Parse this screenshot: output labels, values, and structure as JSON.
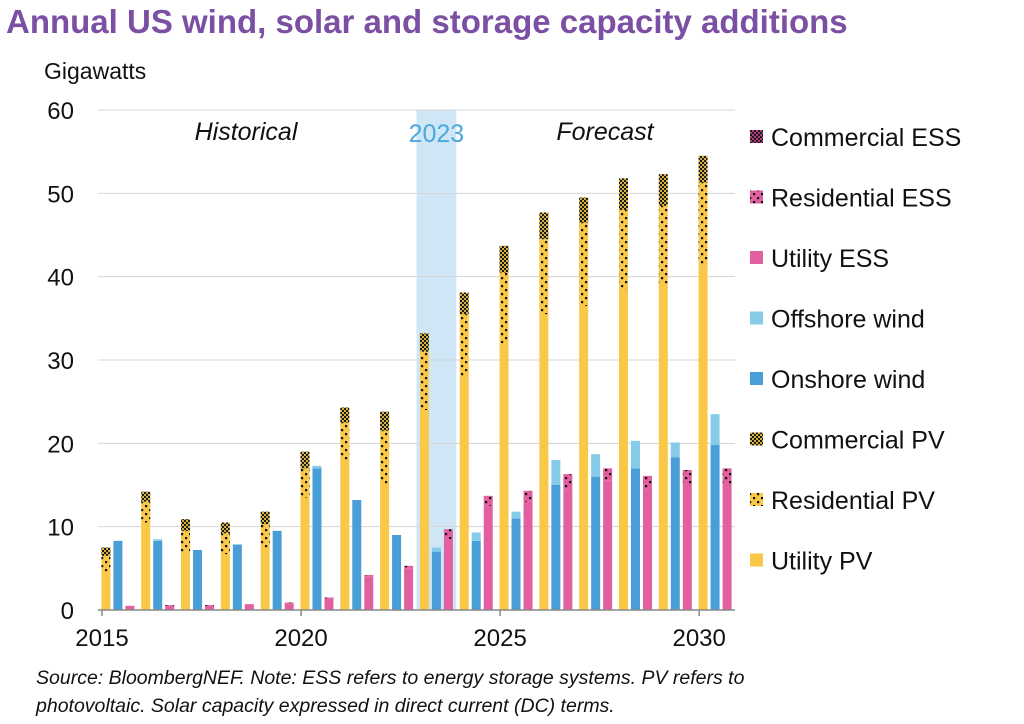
{
  "chart_data": {
    "type": "bar",
    "title": "Annual US wind, solar and storage capacity additions",
    "ylabel": "Gigawatts",
    "ylim": [
      0,
      60
    ],
    "yticks": [
      0,
      10,
      20,
      30,
      40,
      50,
      60
    ],
    "xticks": [
      "2015",
      "2020",
      "2025",
      "2030"
    ],
    "years": [
      2015,
      2016,
      2017,
      2018,
      2019,
      2020,
      2021,
      2022,
      2023,
      2024,
      2025,
      2026,
      2027,
      2028,
      2029,
      2030
    ],
    "region_labels": {
      "historical": "Historical",
      "highlight": "2023",
      "forecast": "Forecast"
    },
    "highlight_year": 2023,
    "highlight_color": "#cfe6f6",
    "grid": "horizontal",
    "legend_position": "right",
    "stacks": [
      {
        "name": "Solar",
        "series": [
          {
            "name": "Utility PV",
            "color": "#f8c846",
            "pattern": "solid",
            "values": [
              4.5,
              10.5,
              7.0,
              6.7,
              7.5,
              13.5,
              18.0,
              15.0,
              24.0,
              28.0,
              32.0,
              35.5,
              36.5,
              38.5,
              39.0,
              41.5
            ]
          },
          {
            "name": "Residential PV",
            "color": "#f8c846",
            "pattern": "dots",
            "values": [
              2.0,
              2.5,
              2.5,
              2.5,
              2.8,
              3.5,
              4.5,
              6.5,
              7.0,
              7.5,
              8.5,
              9.0,
              10.0,
              9.5,
              9.5,
              9.8
            ]
          },
          {
            "name": "Commercial PV",
            "color": "#e0b63a",
            "pattern": "checker",
            "values": [
              1.0,
              1.2,
              1.4,
              1.3,
              1.5,
              2.0,
              1.8,
              2.3,
              2.2,
              2.6,
              3.2,
              3.2,
              3.0,
              3.8,
              3.8,
              3.2
            ]
          }
        ]
      },
      {
        "name": "Wind",
        "series": [
          {
            "name": "Onshore wind",
            "color": "#4a9ed8",
            "pattern": "solid",
            "values": [
              8.3,
              8.3,
              7.2,
              7.8,
              9.5,
              17.0,
              13.2,
              9.0,
              7.0,
              8.3,
              11.0,
              15.0,
              16.0,
              17.0,
              18.3,
              19.8
            ]
          },
          {
            "name": "Offshore wind",
            "color": "#86cbe8",
            "pattern": "solid",
            "values": [
              0.0,
              0.2,
              0.0,
              0.1,
              0.0,
              0.3,
              0.0,
              0.0,
              0.5,
              1.0,
              0.8,
              3.0,
              2.7,
              3.3,
              1.8,
              3.7
            ]
          }
        ]
      },
      {
        "name": "Storage",
        "series": [
          {
            "name": "Utility ESS",
            "color": "#e2609f",
            "pattern": "solid",
            "values": [
              0.5,
              0.5,
              0.5,
              0.6,
              0.8,
              1.4,
              4.0,
              5.0,
              8.5,
              12.5,
              13.0,
              14.5,
              15.5,
              14.5,
              15.0,
              15.0
            ]
          },
          {
            "name": "Residential ESS",
            "color": "#e2609f",
            "pattern": "dots",
            "values": [
              0.0,
              0.1,
              0.1,
              0.1,
              0.1,
              0.1,
              0.2,
              0.3,
              1.2,
              1.2,
              1.3,
              1.8,
              1.5,
              1.6,
              1.8,
              2.0
            ]
          },
          {
            "name": "Commercial ESS",
            "color": "#b13a7a",
            "pattern": "checker",
            "values": [
              0.0,
              0.0,
              0.0,
              0.0,
              0.0,
              0.0,
              0.0,
              0.0,
              0.0,
              0.0,
              0.0,
              0.0,
              0.0,
              0.0,
              0.0,
              0.0
            ]
          }
        ]
      }
    ],
    "legend": [
      "Commercial ESS",
      "Residential ESS",
      "Utility ESS",
      "Offshore wind",
      "Onshore wind",
      "Commercial PV",
      "Residential PV",
      "Utility PV"
    ]
  },
  "source_note": {
    "line1": "Source: BloombergNEF. Note: ESS refers to energy storage systems. PV refers to",
    "line2": "photovoltaic. Solar capacity expressed in direct current (DC) terms."
  }
}
